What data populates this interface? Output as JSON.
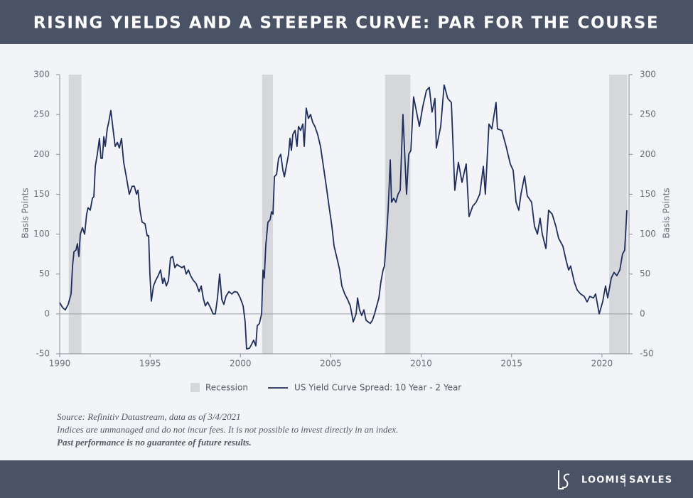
{
  "chart_data": {
    "type": "line",
    "title": "RISING YIELDS AND A STEEPER CURVE: PAR FOR THE COURSE",
    "y_label": "Basis Points",
    "y2_label": "Basis Points",
    "xlim": [
      1990,
      2021.5
    ],
    "xticks": [
      1990,
      1995,
      2000,
      2005,
      2010,
      2015,
      2020
    ],
    "ylim": [
      -50,
      300
    ],
    "yticks": [
      -50,
      0,
      50,
      100,
      150,
      200,
      250,
      300
    ],
    "y2lim": [
      -50,
      300
    ],
    "y2ticks": [
      -50,
      0,
      50,
      100,
      150,
      200,
      250,
      300
    ],
    "zero_line": true,
    "recession_label": "Recession",
    "recession_color": "#d5d7db",
    "recessions": [
      [
        1990.5,
        1991.2
      ],
      [
        2001.2,
        2001.8
      ],
      [
        2008.0,
        2009.4
      ],
      [
        2020.4,
        2021.4
      ]
    ],
    "x": [
      1990.0,
      1990.16,
      1990.31,
      1990.47,
      1990.63,
      1990.71,
      1990.79,
      1990.9,
      1990.98,
      1991.06,
      1991.14,
      1991.26,
      1991.38,
      1991.49,
      1991.57,
      1991.69,
      1991.81,
      1991.89,
      1991.97,
      1992.08,
      1992.2,
      1992.28,
      1992.36,
      1992.44,
      1992.52,
      1992.63,
      1992.71,
      1992.83,
      1992.95,
      1993.07,
      1993.19,
      1993.3,
      1993.42,
      1993.54,
      1993.7,
      1993.85,
      1994.01,
      1994.13,
      1994.25,
      1994.33,
      1994.44,
      1994.56,
      1994.72,
      1994.84,
      1994.92,
      1994.99,
      1995.07,
      1995.19,
      1995.31,
      1995.43,
      1995.58,
      1995.7,
      1995.78,
      1995.9,
      1996.02,
      1996.13,
      1996.25,
      1996.37,
      1996.49,
      1996.61,
      1996.76,
      1996.88,
      1997.0,
      1997.12,
      1997.24,
      1997.39,
      1997.55,
      1997.71,
      1997.83,
      1997.94,
      1998.06,
      1998.18,
      1998.34,
      1998.49,
      1998.61,
      1998.73,
      1998.85,
      1998.97,
      1999.08,
      1999.2,
      1999.36,
      1999.52,
      1999.67,
      1999.83,
      1999.99,
      2000.15,
      2000.26,
      2000.34,
      2000.5,
      2000.62,
      2000.73,
      2000.85,
      2000.93,
      2001.05,
      2001.17,
      2001.25,
      2001.32,
      2001.4,
      2001.52,
      2001.64,
      2001.72,
      2001.8,
      2001.88,
      2002.0,
      2002.11,
      2002.23,
      2002.35,
      2002.43,
      2002.54,
      2002.66,
      2002.74,
      2002.82,
      2002.9,
      2003.02,
      2003.13,
      2003.21,
      2003.33,
      2003.45,
      2003.53,
      2003.64,
      2003.76,
      2003.88,
      2004.0,
      2004.12,
      2004.27,
      2004.43,
      2004.59,
      2004.75,
      2004.9,
      2005.06,
      2005.18,
      2005.34,
      2005.49,
      2005.61,
      2005.77,
      2005.93,
      2006.08,
      2006.24,
      2006.4,
      2006.48,
      2006.59,
      2006.71,
      2006.83,
      2006.95,
      2007.07,
      2007.18,
      2007.3,
      2007.42,
      2007.54,
      2007.66,
      2007.77,
      2007.89,
      2007.97,
      2008.09,
      2008.17,
      2008.29,
      2008.36,
      2008.48,
      2008.6,
      2008.72,
      2008.84,
      2008.91,
      2008.99,
      2009.11,
      2009.19,
      2009.31,
      2009.43,
      2009.58,
      2009.9,
      2010.09,
      2010.29,
      2010.45,
      2010.6,
      2010.76,
      2010.84,
      2011.08,
      2011.27,
      2011.47,
      2011.67,
      2011.86,
      2012.06,
      2012.26,
      2012.49,
      2012.65,
      2012.85,
      2013.04,
      2013.24,
      2013.44,
      2013.55,
      2013.75,
      2013.91,
      2014.14,
      2014.22,
      2014.46,
      2014.7,
      2014.93,
      2015.09,
      2015.25,
      2015.4,
      2015.52,
      2015.72,
      2015.87,
      2016.11,
      2016.27,
      2016.43,
      2016.58,
      2016.7,
      2016.9,
      2017.05,
      2017.25,
      2017.45,
      2017.6,
      2017.84,
      2018.04,
      2018.16,
      2018.27,
      2018.47,
      2018.63,
      2018.82,
      2019.02,
      2019.18,
      2019.33,
      2019.53,
      2019.65,
      2019.85,
      2020.04,
      2020.2,
      2020.32,
      2020.52,
      2020.67,
      2020.83,
      2020.99,
      2021.14,
      2021.26,
      2021.38
    ],
    "series": [
      {
        "name": "US Yield Curve Spread: 10 Year - 2 Year",
        "color": "#1f2d5c",
        "values": [
          14,
          8,
          5,
          12,
          25,
          60,
          78,
          80,
          88,
          72,
          100,
          108,
          100,
          125,
          133,
          130,
          145,
          147,
          185,
          200,
          220,
          195,
          195,
          222,
          210,
          232,
          240,
          255,
          232,
          210,
          215,
          208,
          220,
          190,
          170,
          150,
          160,
          160,
          150,
          155,
          130,
          115,
          113,
          98,
          98,
          50,
          16,
          35,
          42,
          47,
          55,
          38,
          45,
          35,
          42,
          70,
          72,
          58,
          62,
          60,
          58,
          60,
          50,
          55,
          48,
          42,
          38,
          28,
          35,
          20,
          10,
          15,
          8,
          0,
          0,
          20,
          50,
          18,
          12,
          22,
          28,
          25,
          28,
          27,
          20,
          10,
          -10,
          -44,
          -43,
          -38,
          -33,
          -40,
          -15,
          -12,
          0,
          55,
          45,
          85,
          115,
          118,
          128,
          125,
          172,
          175,
          195,
          200,
          180,
          172,
          185,
          200,
          220,
          205,
          225,
          230,
          210,
          235,
          230,
          238,
          210,
          258,
          245,
          250,
          240,
          235,
          225,
          210,
          185,
          160,
          135,
          110,
          85,
          70,
          55,
          35,
          25,
          18,
          10,
          -10,
          0,
          20,
          5,
          -2,
          5,
          -8,
          -10,
          -12,
          -8,
          0,
          10,
          20,
          40,
          55,
          60,
          100,
          130,
          193,
          140,
          145,
          140,
          150,
          155,
          200,
          250,
          190,
          150,
          200,
          205,
          272,
          235,
          260,
          280,
          284,
          253,
          270,
          208,
          235,
          287,
          270,
          265,
          155,
          190,
          165,
          188,
          122,
          135,
          140,
          150,
          185,
          150,
          238,
          232,
          265,
          232,
          230,
          210,
          188,
          180,
          140,
          130,
          150,
          173,
          148,
          140,
          110,
          100,
          120,
          100,
          82,
          130,
          125,
          110,
          95,
          85,
          65,
          55,
          60,
          40,
          30,
          25,
          22,
          15,
          22,
          20,
          25,
          0,
          15,
          35,
          20,
          45,
          52,
          48,
          55,
          75,
          80,
          130
        ]
      }
    ],
    "notes": [
      "Source: Refinitiv Datastream, data as of 3/4/2021",
      "Indices are unmanaged and do not incur fees. It is not possible to invest directly in an index."
    ],
    "disclaimer": "Past performance is no guarantee of future results."
  },
  "logo": {
    "left": "LOOMIS",
    "right": "SAYLES"
  }
}
